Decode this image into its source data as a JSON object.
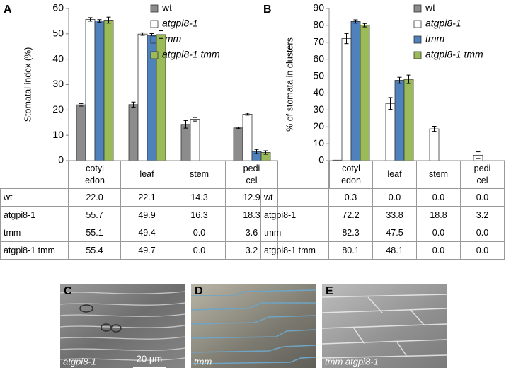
{
  "chart_data": [
    {
      "type": "bar",
      "panel": "A",
      "y_label": "Stomatal index (%)",
      "categories": [
        "cotyl edon",
        "leaf",
        "stem",
        "pedi cel"
      ],
      "ylim": [
        0,
        60
      ],
      "yticks": [
        0,
        10,
        20,
        30,
        40,
        50,
        60
      ],
      "series": [
        {
          "name": "wt",
          "color": "#8c8c8c",
          "values": [
            22.0,
            22.1,
            14.3,
            12.9
          ],
          "value_labels": [
            "22.0",
            "22.1",
            "14.3",
            "12.9"
          ],
          "errors": [
            0.5,
            1.0,
            1.5,
            0.3
          ]
        },
        {
          "name": "atgpi8-1",
          "color": "#ffffff",
          "values": [
            55.7,
            49.9,
            16.3,
            18.3
          ],
          "value_labels": [
            "55.7",
            "49.9",
            "16.3",
            "18.3"
          ],
          "errors": [
            0.7,
            0.5,
            0.7,
            0.4
          ]
        },
        {
          "name": "tmm",
          "color": "#4f81bd",
          "values": [
            55.1,
            49.4,
            0.0,
            3.6
          ],
          "value_labels": [
            "55.1",
            "49.4",
            "0.0",
            "3.6"
          ],
          "errors": [
            0.5,
            0.7,
            null,
            0.8
          ]
        },
        {
          "name": "atgpi8-1 tmm",
          "color": "#9bbb59",
          "values": [
            55.4,
            49.7,
            0.0,
            3.2
          ],
          "value_labels": [
            "55.4",
            "49.7",
            "0.0",
            "3.2"
          ],
          "errors": [
            1.2,
            1.5,
            null,
            0.7
          ]
        }
      ]
    },
    {
      "type": "bar",
      "panel": "B",
      "y_label": "% of stomata in clusters",
      "categories": [
        "cotyl edon",
        "leaf",
        "stem",
        "pedi cel"
      ],
      "ylim": [
        0,
        90
      ],
      "yticks": [
        0,
        10,
        20,
        30,
        40,
        50,
        60,
        70,
        80,
        90
      ],
      "series": [
        {
          "name": "wt",
          "color": "#8c8c8c",
          "values": [
            0.3,
            0.0,
            0.0,
            0.0
          ],
          "value_labels": [
            "0.3",
            "0.0",
            "0.0",
            "0.0"
          ],
          "errors": [
            null,
            null,
            null,
            null
          ]
        },
        {
          "name": "atgpi8-1",
          "color": "#ffffff",
          "values": [
            72.2,
            33.8,
            18.8,
            3.2
          ],
          "value_labels": [
            "72.2",
            "33.8",
            "18.8",
            "3.2"
          ],
          "errors": [
            3.0,
            3.5,
            1.5,
            2.0
          ]
        },
        {
          "name": "tmm",
          "color": "#4f81bd",
          "values": [
            82.3,
            47.5,
            0.0,
            0.0
          ],
          "value_labels": [
            "82.3",
            "47.5",
            "0.0",
            "0.0"
          ],
          "errors": [
            1.0,
            1.8,
            null,
            null
          ]
        },
        {
          "name": "atgpi8-1 tmm",
          "color": "#9bbb59",
          "values": [
            80.1,
            48.1,
            0.0,
            0.0
          ],
          "value_labels": [
            "80.1",
            "48.1",
            "0.0",
            "0.0"
          ],
          "errors": [
            1.0,
            2.5,
            null,
            null
          ]
        }
      ]
    }
  ],
  "images": [
    {
      "panel": "C",
      "caption": "atgpi8-1",
      "scale_bar": "20 µm"
    },
    {
      "panel": "D",
      "caption": "tmm"
    },
    {
      "panel": "E",
      "caption": "tmm atgpi8-1"
    }
  ]
}
